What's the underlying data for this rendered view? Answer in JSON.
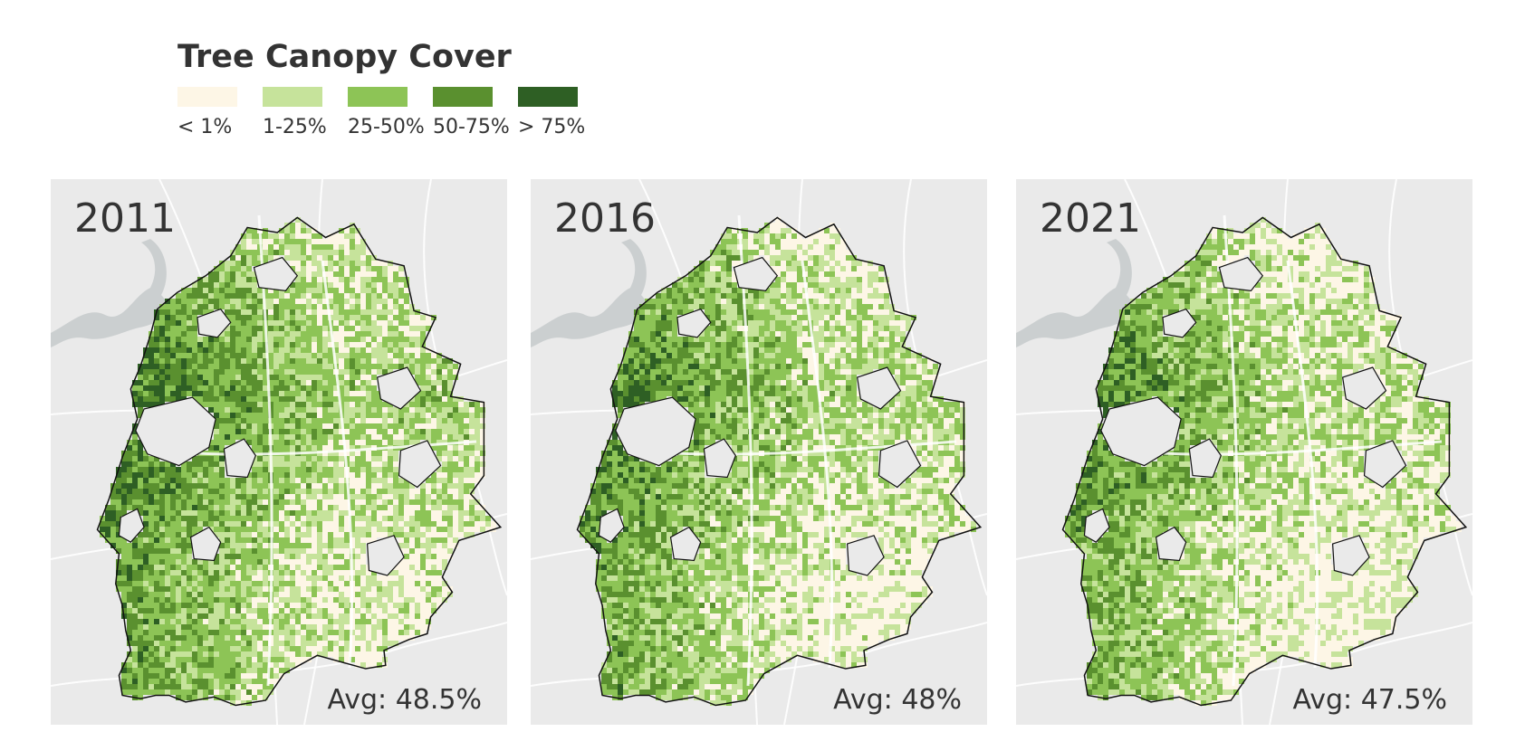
{
  "legend": {
    "title": "Tree Canopy Cover",
    "items": [
      {
        "label": "< 1%",
        "color": "#fdf6e6"
      },
      {
        "label": "1-25%",
        "color": "#c6e39b"
      },
      {
        "label": "25-50%",
        "color": "#8dc456"
      },
      {
        "label": "50-75%",
        "color": "#5a902f"
      },
      {
        "label": "> 75%",
        "color": "#2e5f24"
      }
    ]
  },
  "panels": [
    {
      "year": "2011",
      "average": "Avg: 48.5%"
    },
    {
      "year": "2016",
      "average": "Avg: 48%"
    },
    {
      "year": "2021",
      "average": "Avg: 47.5%"
    }
  ],
  "map_colors": {
    "background": "#eaeaea",
    "water": "#c8cccd",
    "roads": "#ffffff",
    "boundary": "#111111"
  }
}
